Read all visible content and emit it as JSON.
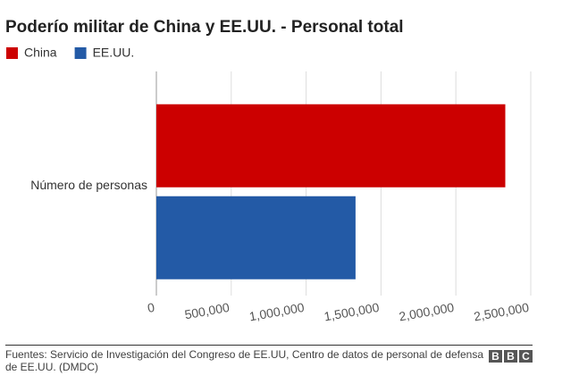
{
  "chart_data": {
    "type": "hbar",
    "title": "Poderío militar de China y EE.UU. - Personal total",
    "categories": [
      "Número de personas"
    ],
    "series": [
      {
        "name": "China",
        "color": "#cc0000",
        "values": [
          2330000
        ]
      },
      {
        "name": "EE.UU.",
        "color": "#235aa6",
        "values": [
          1330000
        ]
      }
    ],
    "xlim": [
      0,
      2500000
    ],
    "xticks": [
      0,
      {
        "value": 500000,
        "label": "500,000"
      },
      {
        "value": 1000000,
        "label": "1,000,000"
      },
      {
        "value": 1500000,
        "label": "1,500,000"
      },
      {
        "value": 2000000,
        "label": "2,000,000"
      },
      {
        "value": 2500000,
        "label": "2,500,000"
      }
    ],
    "grid": true
  },
  "footer": {
    "source": "Fuentes: Servicio de Investigación del Congreso de EE.UU, Centro de datos de personal de defensa de EE.UU. (DMDC)",
    "logo": [
      "B",
      "B",
      "C"
    ]
  }
}
